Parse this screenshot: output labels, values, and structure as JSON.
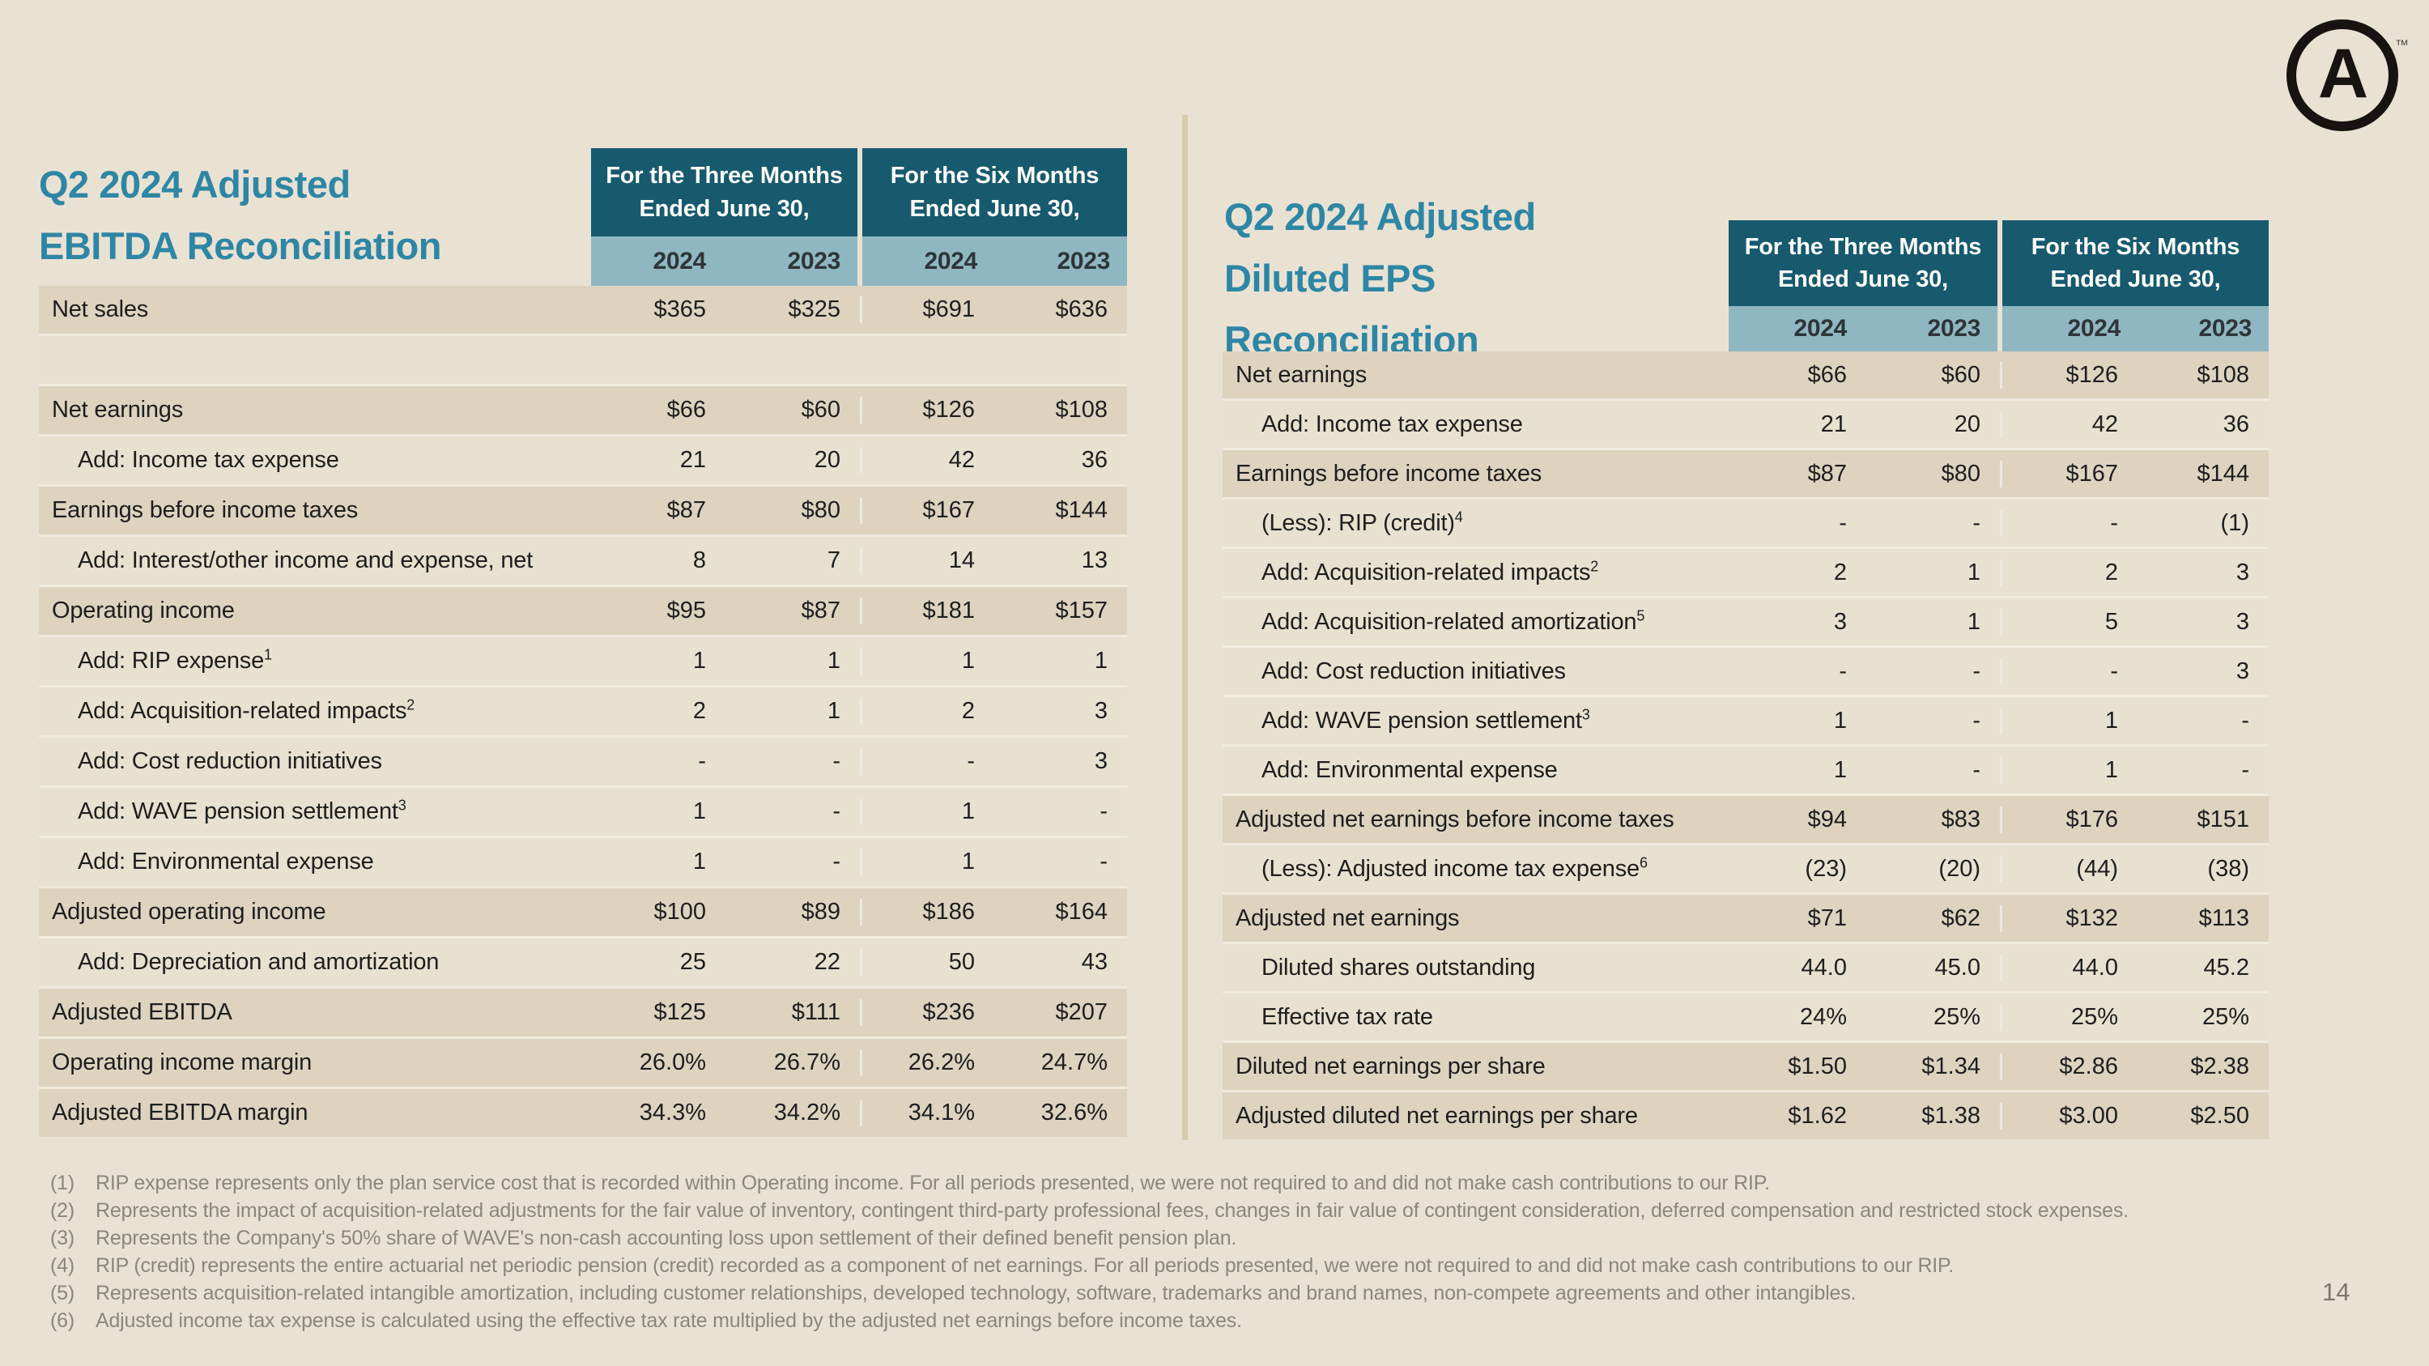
{
  "colors": {
    "background": "#e9e2d3",
    "header_teal": "#175a6e",
    "subheader_blue": "#8fb7c2",
    "title_teal": "#2e86a5",
    "row_dark": "#ddd3bf",
    "row_light": "#e8e1d0",
    "footnote_gray": "#8c8679",
    "logo_black": "#171310"
  },
  "logo": {
    "letter": "A",
    "trademark": "™"
  },
  "page": {
    "number": "14"
  },
  "left_table": {
    "title_lines": [
      "Q2 2024 Adjusted",
      "EBITDA Reconciliation"
    ],
    "col_groups": [
      {
        "line1": "For the Three Months",
        "line2": "Ended June 30,"
      },
      {
        "line1": "For the Six Months",
        "line2": "Ended June 30,"
      }
    ],
    "years": [
      "2024",
      "2023",
      "2024",
      "2023"
    ],
    "rows": [
      {
        "label": "Net sales",
        "dark": true,
        "indent": false,
        "values": [
          "$365",
          "$325",
          "$691",
          "$636"
        ]
      },
      {
        "label": "",
        "dark": false,
        "indent": false,
        "values": [
          "",
          "",
          "",
          ""
        ]
      },
      {
        "label": "Net earnings",
        "dark": true,
        "indent": false,
        "values": [
          "$66",
          "$60",
          "$126",
          "$108"
        ]
      },
      {
        "label": "Add: Income tax expense",
        "dark": false,
        "indent": true,
        "values": [
          "21",
          "20",
          "42",
          "36"
        ]
      },
      {
        "label": "Earnings before income taxes",
        "dark": true,
        "indent": false,
        "values": [
          "$87",
          "$80",
          "$167",
          "$144"
        ]
      },
      {
        "label": "Add: Interest/other income and expense, net",
        "dark": false,
        "indent": true,
        "values": [
          "8",
          "7",
          "14",
          "13"
        ]
      },
      {
        "label": "Operating income",
        "dark": true,
        "indent": false,
        "values": [
          "$95",
          "$87",
          "$181",
          "$157"
        ]
      },
      {
        "label": "Add: RIP expense",
        "sup": "1",
        "dark": false,
        "indent": true,
        "values": [
          "1",
          "1",
          "1",
          "1"
        ]
      },
      {
        "label": "Add: Acquisition-related impacts",
        "sup": "2",
        "dark": false,
        "indent": true,
        "values": [
          "2",
          "1",
          "2",
          "3"
        ]
      },
      {
        "label": "Add: Cost reduction initiatives",
        "dark": false,
        "indent": true,
        "values": [
          "-",
          "-",
          "-",
          "3"
        ]
      },
      {
        "label": "Add: WAVE pension settlement",
        "sup": "3",
        "dark": false,
        "indent": true,
        "values": [
          "1",
          "-",
          "1",
          "-"
        ]
      },
      {
        "label": "Add: Environmental expense",
        "dark": false,
        "indent": true,
        "values": [
          "1",
          "-",
          "1",
          "-"
        ]
      },
      {
        "label": "Adjusted operating income",
        "dark": true,
        "indent": false,
        "values": [
          "$100",
          "$89",
          "$186",
          "$164"
        ]
      },
      {
        "label": "Add: Depreciation and amortization",
        "dark": false,
        "indent": true,
        "values": [
          "25",
          "22",
          "50",
          "43"
        ]
      },
      {
        "label": "Adjusted EBITDA",
        "dark": true,
        "indent": false,
        "values": [
          "$125",
          "$111",
          "$236",
          "$207"
        ]
      },
      {
        "label": "Operating income margin",
        "dark": true,
        "indent": false,
        "values": [
          "26.0%",
          "26.7%",
          "26.2%",
          "24.7%"
        ]
      },
      {
        "label": "Adjusted EBITDA margin",
        "dark": true,
        "indent": false,
        "values": [
          "34.3%",
          "34.2%",
          "34.1%",
          "32.6%"
        ]
      }
    ]
  },
  "right_table": {
    "title_lines": [
      "Q2 2024 Adjusted",
      "Diluted EPS",
      "Reconciliation"
    ],
    "col_groups": [
      {
        "line1": "For the Three Months",
        "line2": "Ended June 30,"
      },
      {
        "line1": "For the Six Months",
        "line2": "Ended June 30,"
      }
    ],
    "years": [
      "2024",
      "2023",
      "2024",
      "2023"
    ],
    "rows": [
      {
        "label": "Net earnings",
        "dark": true,
        "indent": false,
        "values": [
          "$66",
          "$60",
          "$126",
          "$108"
        ]
      },
      {
        "label": "Add: Income tax expense",
        "dark": false,
        "indent": true,
        "values": [
          "21",
          "20",
          "42",
          "36"
        ]
      },
      {
        "label": "Earnings before income taxes",
        "dark": true,
        "indent": false,
        "values": [
          "$87",
          "$80",
          "$167",
          "$144"
        ]
      },
      {
        "label": "(Less): RIP (credit)",
        "sup": "4",
        "dark": false,
        "indent": true,
        "values": [
          "-",
          "-",
          "-",
          "(1)"
        ]
      },
      {
        "label": "Add: Acquisition-related impacts",
        "sup": "2",
        "dark": false,
        "indent": true,
        "values": [
          "2",
          "1",
          "2",
          "3"
        ]
      },
      {
        "label": "Add: Acquisition-related amortization",
        "sup": "5",
        "dark": false,
        "indent": true,
        "values": [
          "3",
          "1",
          "5",
          "3"
        ]
      },
      {
        "label": "Add: Cost reduction initiatives",
        "dark": false,
        "indent": true,
        "values": [
          "-",
          "-",
          "-",
          "3"
        ]
      },
      {
        "label": "Add: WAVE pension settlement",
        "sup": "3",
        "dark": false,
        "indent": true,
        "values": [
          "1",
          "-",
          "1",
          "-"
        ]
      },
      {
        "label": "Add: Environmental expense",
        "dark": false,
        "indent": true,
        "values": [
          "1",
          "-",
          "1",
          "-"
        ]
      },
      {
        "label": "Adjusted net earnings before income taxes",
        "dark": true,
        "indent": false,
        "values": [
          "$94",
          "$83",
          "$176",
          "$151"
        ]
      },
      {
        "label": "(Less): Adjusted income tax expense",
        "sup": "6",
        "dark": false,
        "indent": true,
        "values": [
          "(23)",
          "(20)",
          "(44)",
          "(38)"
        ]
      },
      {
        "label": "Adjusted net earnings",
        "dark": true,
        "indent": false,
        "values": [
          "$71",
          "$62",
          "$132",
          "$113"
        ]
      },
      {
        "label": "Diluted shares outstanding",
        "dark": false,
        "indent": true,
        "values": [
          "44.0",
          "45.0",
          "44.0",
          "45.2"
        ]
      },
      {
        "label": "Effective tax rate",
        "dark": false,
        "indent": true,
        "values": [
          "24%",
          "25%",
          "25%",
          "25%"
        ]
      },
      {
        "label": "Diluted net earnings per share",
        "dark": true,
        "indent": false,
        "values": [
          "$1.50",
          "$1.34",
          "$2.86",
          "$2.38"
        ]
      },
      {
        "label": "Adjusted diluted net earnings per share",
        "dark": true,
        "indent": false,
        "values": [
          "$1.62",
          "$1.38",
          "$3.00",
          "$2.50"
        ]
      }
    ]
  },
  "footnotes": [
    {
      "num": "(1)",
      "text": "RIP expense represents only the plan service cost that is recorded within Operating income. For all periods presented, we were not required to and did not make cash contributions to our RIP."
    },
    {
      "num": "(2)",
      "text": "Represents the impact of acquisition-related adjustments for the fair value of inventory, contingent third-party professional fees, changes in fair value of contingent consideration, deferred compensation and restricted stock expenses."
    },
    {
      "num": "(3)",
      "text": "Represents the Company's 50% share of WAVE's non-cash accounting loss upon settlement of their defined benefit pension plan."
    },
    {
      "num": "(4)",
      "text": "RIP (credit) represents the entire actuarial net periodic pension (credit) recorded as a component of net earnings. For all periods presented, we were not required to and did not make cash contributions to our RIP."
    },
    {
      "num": "(5)",
      "text": "Represents acquisition-related intangible amortization, including customer relationships, developed technology, software, trademarks and brand names, non-compete agreements and other intangibles."
    },
    {
      "num": "(6)",
      "text": "Adjusted income tax expense is calculated using the effective tax rate multiplied by the adjusted net earnings before income taxes."
    }
  ]
}
